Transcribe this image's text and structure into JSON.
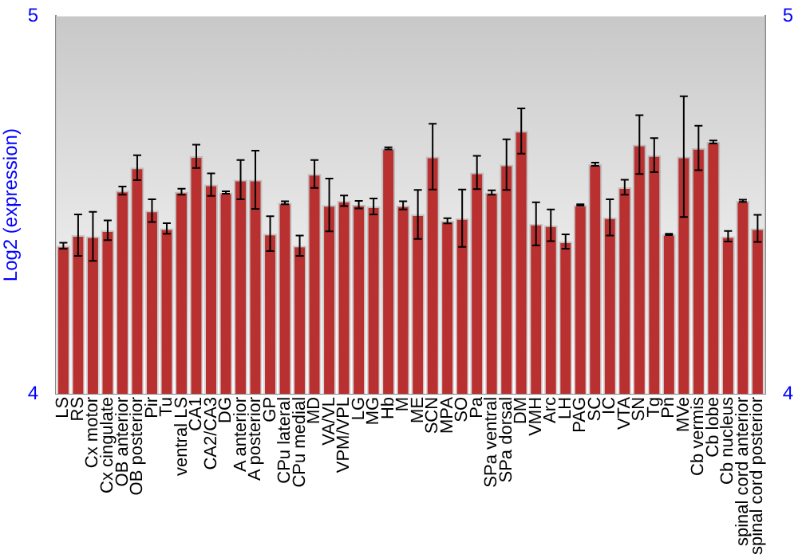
{
  "chart_data": {
    "type": "bar",
    "ylabel": "Log2 (expression)",
    "categories": [
      "LS",
      "RS",
      "Cx motor",
      "Cx cingulate",
      "OB anterior",
      "OB posterior",
      "Pir",
      "Tu",
      "ventral LS",
      "CA1",
      "CA2/CA3",
      "DG",
      "A anterior",
      "A posterior",
      "GP",
      "CPu lateral",
      "CPu medial",
      "MD",
      "VA/VL",
      "VPM/VPL",
      "LG",
      "MG",
      "Hb",
      "M",
      "ME",
      "SCN",
      "MPA",
      "SO",
      "Pa",
      "SPa ventral",
      "SPa dorsal",
      "DM",
      "VMH",
      "Arc",
      "LH",
      "PAG",
      "SC",
      "IC",
      "VTA",
      "SN",
      "Tg",
      "Pn",
      "MVe",
      "Cb vermis",
      "Cb lobe",
      "Cb nucleus",
      "spinal cord anterior",
      "spinal cord posterior"
    ],
    "values": [
      4.392,
      4.42,
      4.417,
      4.433,
      4.538,
      4.599,
      4.485,
      4.438,
      4.535,
      4.629,
      4.554,
      4.533,
      4.567,
      4.567,
      4.424,
      4.506,
      4.392,
      4.582,
      4.5,
      4.511,
      4.501,
      4.496,
      4.65,
      4.499,
      4.475,
      4.628,
      4.458,
      4.465,
      4.586,
      4.533,
      4.607,
      4.696,
      4.45,
      4.446,
      4.403,
      4.5,
      4.608,
      4.467,
      4.547,
      4.66,
      4.632,
      4.422,
      4.628,
      4.651,
      4.667,
      4.417,
      4.511,
      4.438
    ],
    "errors": [
      0.008,
      0.055,
      0.065,
      0.026,
      0.011,
      0.033,
      0.03,
      0.014,
      0.008,
      0.031,
      0.03,
      0.003,
      0.052,
      0.077,
      0.046,
      0.004,
      0.027,
      0.037,
      0.07,
      0.014,
      0.01,
      0.021,
      0.003,
      0.011,
      0.065,
      0.087,
      0.007,
      0.076,
      0.044,
      0.006,
      0.067,
      0.06,
      0.057,
      0.042,
      0.019,
      0.002,
      0.004,
      0.048,
      0.02,
      0.078,
      0.045,
      0.002,
      0.16,
      0.059,
      0.004,
      0.014,
      0.003,
      0.036
    ],
    "color": "#b83030",
    "ylim": [
      4,
      5
    ],
    "yticks": [
      4,
      5
    ],
    "y2lim": [
      4,
      5
    ],
    "y2ticks": [
      4,
      5
    ],
    "grid": false,
    "legend": false
  }
}
